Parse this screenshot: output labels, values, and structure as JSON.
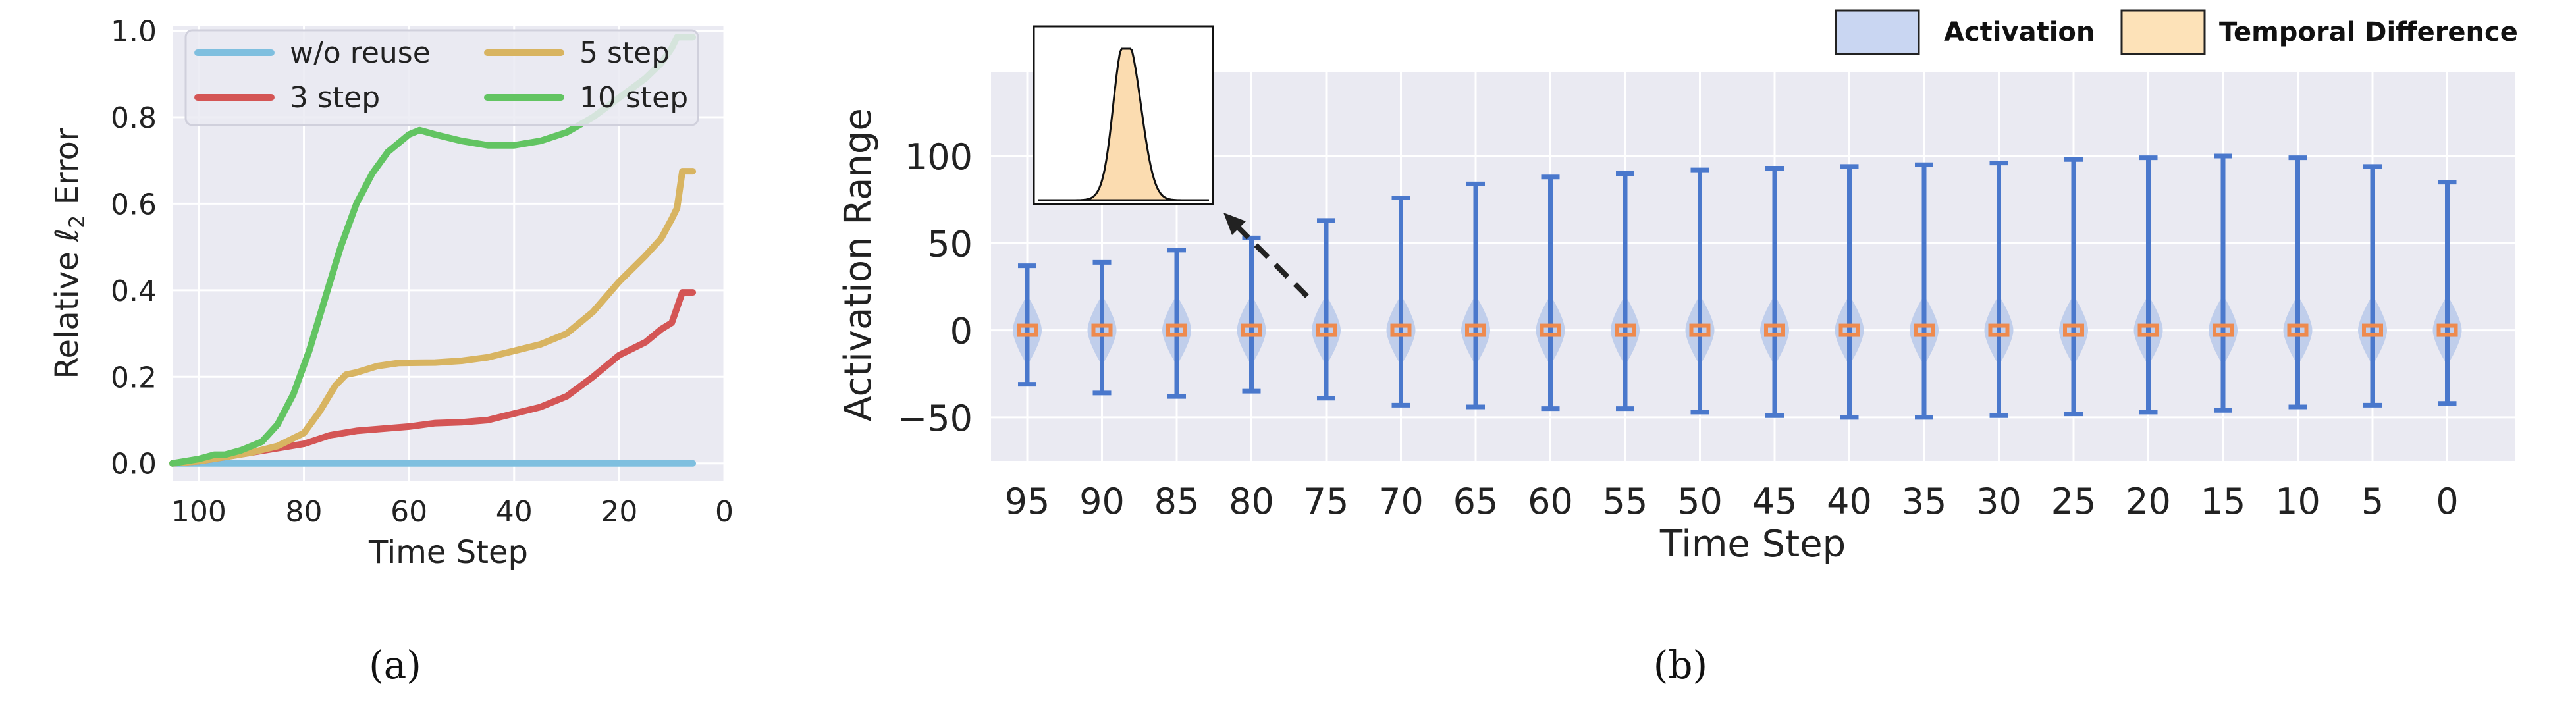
{
  "panel_labels": {
    "a": "(a)",
    "b": "(b)"
  },
  "colors": {
    "plot_bg": "#eaeaf2",
    "grid": "#ffffff",
    "wo_reuse": "#7fbfdf",
    "step3": "#d45555",
    "step5": "#d8b461",
    "step10": "#62c462",
    "violin_fill": "#b8c9ea",
    "whisker": "#4a78cc",
    "median": "#ee8a4e",
    "inset_fill": "#fbdcb0",
    "legend_activation": "#c9d6f2",
    "legend_temporal": "#fde2b8"
  },
  "chart_data": [
    {
      "type": "line",
      "xlabel": "Time Step",
      "ylabel_main": "Relative ",
      "ylabel_symbol": "ℓ",
      "ylabel_sub": "2",
      "ylabel_tail": " Error",
      "x_reversed": true,
      "xlim": [
        105,
        0
      ],
      "ylim": [
        -0.04,
        1.01
      ],
      "xticks": [
        100,
        80,
        60,
        40,
        20,
        0
      ],
      "xtick_labels": [
        "100",
        "80",
        "60",
        "40",
        "20",
        "0"
      ],
      "yticks": [
        0.0,
        0.2,
        0.4,
        0.6,
        0.8,
        1.0
      ],
      "ytick_labels": [
        "0.0",
        "0.2",
        "0.4",
        "0.6",
        "0.8",
        "1.0"
      ],
      "grid": true,
      "legend_position": "top-left",
      "series": [
        {
          "name": "w/o reuse",
          "color_key": "wo_reuse",
          "points": [
            [
              105,
              0.0
            ],
            [
              6,
              0.0
            ]
          ]
        },
        {
          "name": "3 step",
          "color_key": "step3",
          "points": [
            [
              105,
              0.0
            ],
            [
              100,
              0.005
            ],
            [
              95,
              0.015
            ],
            [
              90,
              0.025
            ],
            [
              85,
              0.035
            ],
            [
              80,
              0.045
            ],
            [
              75,
              0.065
            ],
            [
              70,
              0.075
            ],
            [
              65,
              0.08
            ],
            [
              60,
              0.085
            ],
            [
              55,
              0.093
            ],
            [
              50,
              0.095
            ],
            [
              45,
              0.1
            ],
            [
              40,
              0.115
            ],
            [
              35,
              0.13
            ],
            [
              30,
              0.155
            ],
            [
              25,
              0.2
            ],
            [
              20,
              0.25
            ],
            [
              15,
              0.28
            ],
            [
              12,
              0.31
            ],
            [
              10,
              0.325
            ],
            [
              9,
              0.36
            ],
            [
              8,
              0.395
            ],
            [
              6,
              0.395
            ]
          ]
        },
        {
          "name": "5 step",
          "color_key": "step5",
          "points": [
            [
              105,
              0.0
            ],
            [
              100,
              0.005
            ],
            [
              95,
              0.015
            ],
            [
              90,
              0.025
            ],
            [
              85,
              0.04
            ],
            [
              80,
              0.07
            ],
            [
              77,
              0.12
            ],
            [
              74,
              0.18
            ],
            [
              72,
              0.205
            ],
            [
              70,
              0.21
            ],
            [
              66,
              0.225
            ],
            [
              62,
              0.232
            ],
            [
              55,
              0.233
            ],
            [
              50,
              0.237
            ],
            [
              45,
              0.245
            ],
            [
              40,
              0.26
            ],
            [
              35,
              0.275
            ],
            [
              30,
              0.3
            ],
            [
              25,
              0.35
            ],
            [
              20,
              0.42
            ],
            [
              15,
              0.48
            ],
            [
              12,
              0.52
            ],
            [
              10,
              0.565
            ],
            [
              9,
              0.59
            ],
            [
              8,
              0.675
            ],
            [
              6,
              0.675
            ]
          ]
        },
        {
          "name": "10 step",
          "color_key": "step10",
          "points": [
            [
              105,
              0.0
            ],
            [
              100,
              0.01
            ],
            [
              97,
              0.02
            ],
            [
              95,
              0.02
            ],
            [
              92,
              0.03
            ],
            [
              88,
              0.05
            ],
            [
              85,
              0.09
            ],
            [
              82,
              0.16
            ],
            [
              79,
              0.26
            ],
            [
              76,
              0.38
            ],
            [
              73,
              0.5
            ],
            [
              70,
              0.6
            ],
            [
              67,
              0.67
            ],
            [
              64,
              0.72
            ],
            [
              60,
              0.76
            ],
            [
              58,
              0.77
            ],
            [
              55,
              0.76
            ],
            [
              50,
              0.745
            ],
            [
              45,
              0.735
            ],
            [
              40,
              0.735
            ],
            [
              35,
              0.745
            ],
            [
              30,
              0.765
            ],
            [
              25,
              0.8
            ],
            [
              20,
              0.845
            ],
            [
              15,
              0.89
            ],
            [
              12,
              0.925
            ],
            [
              10,
              0.96
            ],
            [
              9,
              0.985
            ],
            [
              6,
              0.985
            ]
          ]
        }
      ]
    },
    {
      "type": "violin",
      "xlabel": "Time Step",
      "ylabel": "Activation Range",
      "ylim": [
        -75,
        148
      ],
      "yticks": [
        -50,
        0,
        50,
        100
      ],
      "ytick_labels": [
        "−50",
        "0",
        "50",
        "100"
      ],
      "grid": true,
      "legend_position": "top-right",
      "legend": [
        "Activation",
        "Temporal Difference"
      ],
      "categories": [
        "95",
        "90",
        "85",
        "80",
        "75",
        "70",
        "65",
        "60",
        "55",
        "50",
        "45",
        "40",
        "35",
        "30",
        "25",
        "20",
        "15",
        "10",
        "5",
        "0"
      ],
      "max": [
        37,
        39,
        46,
        53,
        63,
        76,
        84,
        88,
        90,
        92,
        93,
        94,
        95,
        96,
        98,
        99,
        100,
        99,
        94,
        85
      ],
      "min": [
        -31,
        -36,
        -38,
        -35,
        -39,
        -43,
        -44,
        -45,
        -45,
        -47,
        -49,
        -50,
        -50,
        -49,
        -48,
        -47,
        -46,
        -44,
        -43,
        -42
      ],
      "median": [
        0,
        0,
        0,
        0,
        0,
        0,
        0,
        0,
        0,
        0,
        0,
        0,
        0,
        0,
        0,
        0,
        0,
        0,
        0,
        0
      ],
      "inset": {
        "type": "density",
        "description_hidden": true
      }
    }
  ]
}
